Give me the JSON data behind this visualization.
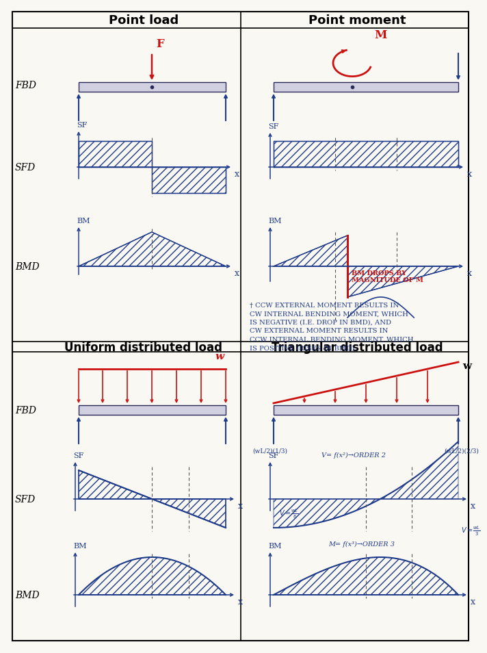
{
  "bg_color": "#faf8f2",
  "blue": "#1e3a8a",
  "red": "#cc1111",
  "beam_face": "#d0d0e0",
  "beam_edge": "#2a2a5a",
  "title1": "Point load",
  "title2": "Point moment",
  "title3": "Uniform distributed load",
  "title4": "Triangular distributed load",
  "note_text": "† CCW EXTERNAL MOMENT RESULTS IN\nCW INTERNAL BENDING MOMENT, WHICH\nIS NEGATIVE (I.E. DROP IN BMD), AND\nCW EXTERNAL MOMENT RESULTS IN\nCCW INTERNAL BENDING MOMENT, WHICH\nIS POSITIVE (RISES IN BMD).",
  "bm_drops_text": "BM DROPS BY\nMAGNITUDE OF M",
  "v_order2": "V= f(x²)→ORDER 2",
  "v_wl6": "V= wL/6",
  "v_wl3": "V= wL/3",
  "m_order3": "M= f(x³)→ORDER 3",
  "wl_1_3": "(wL/2)(1/3)",
  "wl_2_3": "(wL/2)(2/3)"
}
